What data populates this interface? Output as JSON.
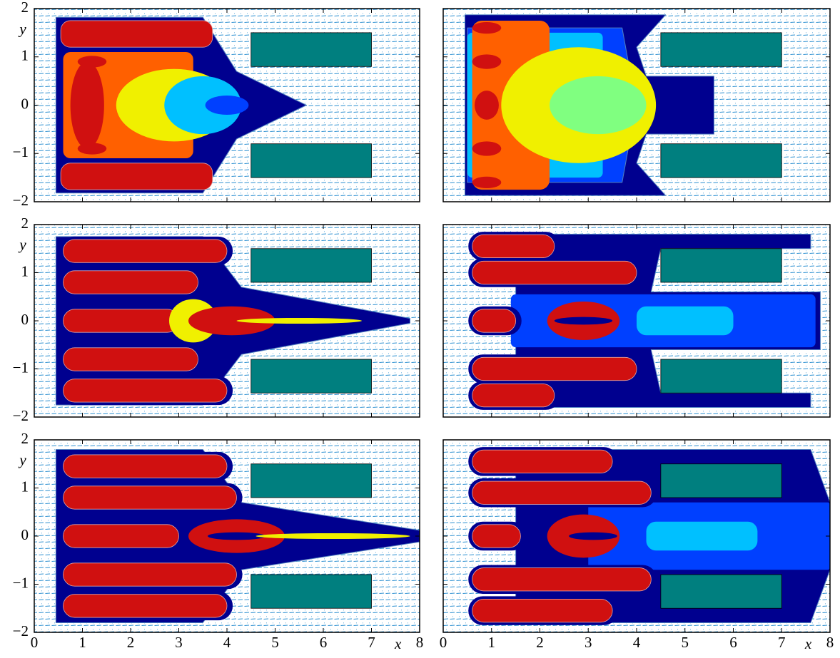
{
  "chart_data": [
    {
      "type": "contour",
      "xlim": [
        0,
        8
      ],
      "ylim": [
        -2,
        2
      ],
      "ylabel": "y",
      "xticks": [
        0,
        1,
        2,
        3,
        4,
        5,
        6,
        7,
        8
      ],
      "xtick_labels": false,
      "yticks": [
        {
          "value": -2,
          "label": "−2"
        },
        {
          "value": -1,
          "label": "−1"
        },
        0,
        1,
        2
      ],
      "ytick_labels": true,
      "obstacles": [
        {
          "x": [
            4.5,
            7
          ],
          "y": [
            0.8,
            1.5
          ]
        },
        {
          "x": [
            4.5,
            7
          ],
          "y": [
            -1.5,
            -0.8
          ]
        }
      ],
      "obstacle_color": "#007f7f"
    },
    {
      "type": "contour",
      "xlim": [
        0,
        8
      ],
      "ylim": [
        -2,
        2
      ],
      "xticks": [
        0,
        1,
        2,
        3,
        4,
        5,
        6,
        7,
        8
      ],
      "xtick_labels": false,
      "yticks": [
        {
          "value": -2,
          "label": "−2"
        },
        {
          "value": -1,
          "label": "−1"
        },
        0,
        1,
        2
      ],
      "ytick_labels": false,
      "obstacles": [
        {
          "x": [
            4.5,
            7
          ],
          "y": [
            0.8,
            1.5
          ]
        },
        {
          "x": [
            4.5,
            7
          ],
          "y": [
            -1.5,
            -0.8
          ]
        }
      ],
      "obstacle_color": "#007f7f"
    },
    {
      "type": "contour",
      "xlim": [
        0,
        8
      ],
      "ylim": [
        -2,
        2
      ],
      "ylabel": "y",
      "xticks": [
        0,
        1,
        2,
        3,
        4,
        5,
        6,
        7,
        8
      ],
      "xtick_labels": false,
      "yticks": [
        {
          "value": -2,
          "label": "−2"
        },
        {
          "value": -1,
          "label": "−1"
        },
        0,
        1,
        2
      ],
      "ytick_labels": true,
      "obstacles": [
        {
          "x": [
            4.5,
            7
          ],
          "y": [
            0.8,
            1.5
          ]
        },
        {
          "x": [
            4.5,
            7
          ],
          "y": [
            -1.5,
            -0.8
          ]
        }
      ],
      "obstacle_color": "#007f7f"
    },
    {
      "type": "contour",
      "xlim": [
        0,
        8
      ],
      "ylim": [
        -2,
        2
      ],
      "xticks": [
        0,
        1,
        2,
        3,
        4,
        5,
        6,
        7,
        8
      ],
      "xtick_labels": false,
      "yticks": [
        {
          "value": -2,
          "label": "−2"
        },
        {
          "value": -1,
          "label": "−1"
        },
        0,
        1,
        2
      ],
      "ytick_labels": false,
      "obstacles": [
        {
          "x": [
            4.5,
            7
          ],
          "y": [
            0.8,
            1.5
          ]
        },
        {
          "x": [
            4.5,
            7
          ],
          "y": [
            -1.5,
            -0.8
          ]
        }
      ],
      "obstacle_color": "#007f7f"
    },
    {
      "type": "contour",
      "xlim": [
        0,
        8
      ],
      "ylim": [
        -2,
        2
      ],
      "ylabel": "y",
      "xlabel": "x",
      "xticks": [
        0,
        1,
        2,
        3,
        4,
        5,
        6,
        7,
        8
      ],
      "xtick_labels": true,
      "yticks": [
        {
          "value": -2,
          "label": "−2"
        },
        {
          "value": -1,
          "label": "−1"
        },
        0,
        1,
        2
      ],
      "ytick_labels": true,
      "obstacles": [
        {
          "x": [
            4.5,
            7
          ],
          "y": [
            0.8,
            1.5
          ]
        },
        {
          "x": [
            4.5,
            7
          ],
          "y": [
            -1.5,
            -0.8
          ]
        }
      ],
      "obstacle_color": "#007f7f"
    },
    {
      "type": "contour",
      "xlim": [
        0,
        8
      ],
      "ylim": [
        -2,
        2
      ],
      "xlabel": "x",
      "xticks": [
        0,
        1,
        2,
        3,
        4,
        5,
        6,
        7,
        8
      ],
      "xtick_labels": true,
      "yticks": [
        {
          "value": -2,
          "label": "−2"
        },
        {
          "value": -1,
          "label": "−1"
        },
        0,
        1,
        2
      ],
      "ytick_labels": false,
      "obstacles": [
        {
          "x": [
            4.5,
            7
          ],
          "y": [
            0.8,
            1.5
          ]
        },
        {
          "x": [
            4.5,
            7
          ],
          "y": [
            -1.5,
            -0.8
          ]
        }
      ],
      "obstacle_color": "#007f7f"
    }
  ]
}
